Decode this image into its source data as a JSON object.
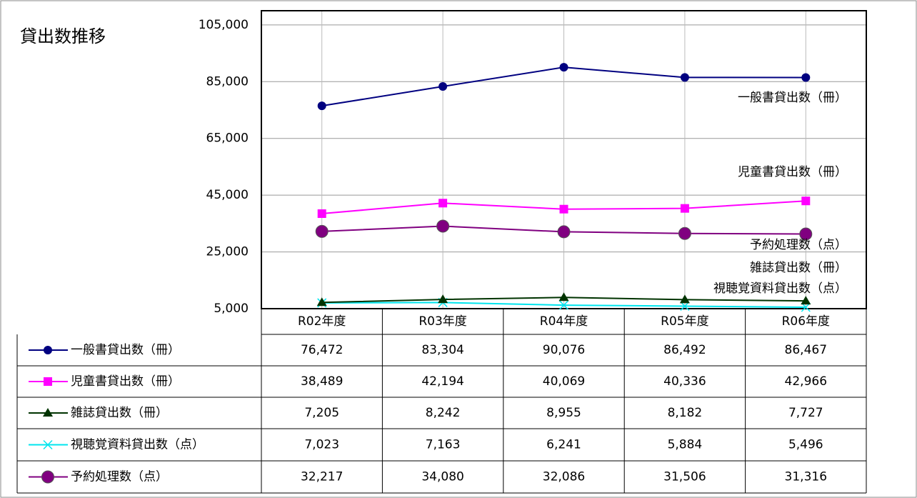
{
  "chart_data": {
    "type": "line",
    "title": "貸出数推移",
    "categories": [
      "R02年度",
      "R03年度",
      "R04年度",
      "R05年度",
      "R06年度"
    ],
    "ylim": [
      5000,
      110000
    ],
    "yticks": [
      {
        "value": 5000,
        "label": "5,000"
      },
      {
        "value": 25000,
        "label": "25,000"
      },
      {
        "value": 45000,
        "label": "45,000"
      },
      {
        "value": 65000,
        "label": "65,000"
      },
      {
        "value": 85000,
        "label": "85,000"
      },
      {
        "value": 105000,
        "label": "105,000"
      }
    ],
    "grid": true,
    "series": [
      {
        "name": "一般書貸出数（冊）",
        "color": "#000080",
        "marker": "circle",
        "values": [
          76472,
          83304,
          90076,
          86492,
          86467
        ],
        "value_labels": [
          "76,472",
          "83,304",
          "90,076",
          "86,492",
          "86,467"
        ]
      },
      {
        "name": "児童書貸出数（冊）",
        "color": "#ff00ff",
        "marker": "square",
        "values": [
          38489,
          42194,
          40069,
          40336,
          42966
        ],
        "value_labels": [
          "38,489",
          "42,194",
          "40,069",
          "40,336",
          "42,966"
        ]
      },
      {
        "name": "雑誌貸出数（冊）",
        "color": "#003300",
        "marker": "triangle",
        "values": [
          7205,
          8242,
          8955,
          8182,
          7727
        ],
        "value_labels": [
          "7,205",
          "8,242",
          "8,955",
          "8,182",
          "7,727"
        ]
      },
      {
        "name": "視聴覚資料貸出数（点）",
        "color": "#00e5ee",
        "marker": "x",
        "values": [
          7023,
          7163,
          6241,
          5884,
          5496
        ],
        "value_labels": [
          "7,023",
          "7,163",
          "6,241",
          "5,884",
          "5,496"
        ]
      },
      {
        "name": "予約処理数（点）",
        "color": "#800080",
        "marker": "bigcircle",
        "values": [
          32217,
          34080,
          32086,
          31506,
          31316
        ],
        "value_labels": [
          "32,217",
          "34,080",
          "32,086",
          "31,506",
          "31,316"
        ]
      }
    ]
  }
}
